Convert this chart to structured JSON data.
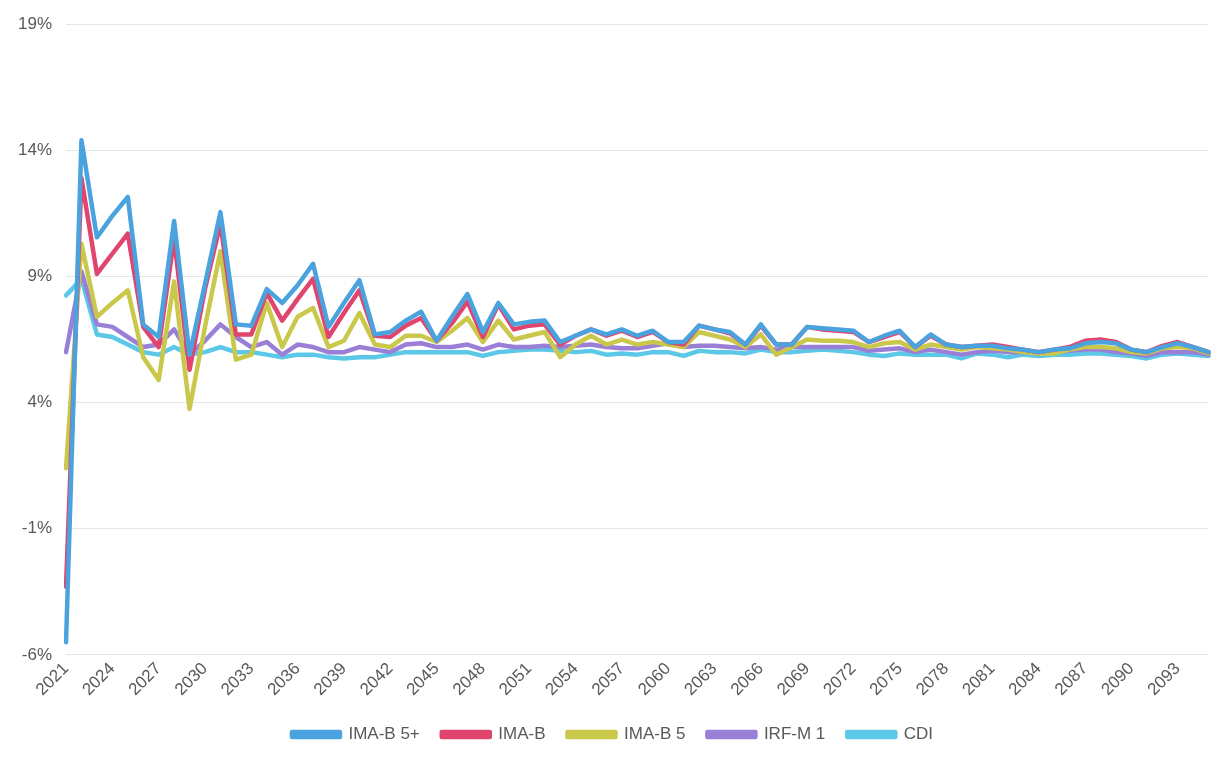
{
  "chart_data": {
    "type": "line",
    "categories": [
      "2021",
      null,
      null,
      "2024",
      null,
      null,
      "2027",
      null,
      null,
      "2030",
      null,
      null,
      "2033",
      null,
      null,
      "2036",
      null,
      null,
      "2039",
      null,
      null,
      "2042",
      null,
      null,
      "2045",
      null,
      null,
      "2048",
      null,
      null,
      "2051",
      null,
      null,
      "2054",
      null,
      null,
      "2057",
      null,
      null,
      "2060",
      null,
      null,
      "2063",
      null,
      null,
      "2066",
      null,
      null,
      "2069",
      null,
      null,
      "2072",
      null,
      null,
      "2075",
      null,
      null,
      "2078",
      null,
      null,
      "2081",
      null,
      null,
      "2084",
      null,
      null,
      "2087",
      null,
      null,
      "2090",
      null,
      null,
      "2093",
      null,
      null
    ],
    "series": [
      {
        "name": "IMA-B 5+",
        "color": "#4aa3df",
        "values": [
          -5.5,
          14.4,
          10.55,
          11.4,
          12.15,
          7.1,
          6.6,
          11.2,
          5.9,
          8.7,
          11.55,
          7.1,
          7.05,
          8.5,
          7.95,
          8.65,
          9.5,
          7.0,
          7.95,
          8.85,
          6.7,
          6.8,
          7.25,
          7.6,
          6.45,
          7.4,
          8.3,
          6.8,
          7.95,
          7.1,
          7.2,
          7.25,
          6.4,
          6.65,
          6.9,
          6.7,
          6.9,
          6.65,
          6.85,
          6.4,
          6.4,
          7.05,
          6.9,
          6.8,
          6.3,
          7.1,
          6.3,
          6.3,
          7.0,
          6.95,
          6.9,
          6.85,
          6.4,
          6.65,
          6.85,
          6.2,
          6.7,
          6.3,
          6.2,
          6.25,
          6.25,
          6.15,
          6.1,
          6.0,
          6.1,
          6.15,
          6.35,
          6.4,
          6.35,
          6.1,
          6.0,
          6.2,
          6.35,
          6.2,
          6.0
        ]
      },
      {
        "name": "IMA-B",
        "color": "#e0456e",
        "values": [
          -3.3,
          12.9,
          9.1,
          9.9,
          10.7,
          7.0,
          6.2,
          10.5,
          5.3,
          8.5,
          11.1,
          6.7,
          6.7,
          8.35,
          7.25,
          8.1,
          8.9,
          6.6,
          7.55,
          8.45,
          6.65,
          6.6,
          7.05,
          7.35,
          6.45,
          7.15,
          8.0,
          6.6,
          7.9,
          6.9,
          7.05,
          7.1,
          6.3,
          6.65,
          6.9,
          6.65,
          6.85,
          6.6,
          6.8,
          6.4,
          6.3,
          7.05,
          6.9,
          6.75,
          6.3,
          7.05,
          6.3,
          6.3,
          7.0,
          6.9,
          6.85,
          6.8,
          6.4,
          6.6,
          6.8,
          6.2,
          6.65,
          6.3,
          6.2,
          6.25,
          6.3,
          6.2,
          6.1,
          6.0,
          6.1,
          6.2,
          6.45,
          6.5,
          6.4,
          6.1,
          6.0,
          6.25,
          6.4,
          6.2,
          6.0
        ]
      },
      {
        "name": "IMA-B 5",
        "color": "#c9c84a",
        "values": [
          1.4,
          10.3,
          7.4,
          7.95,
          8.45,
          5.8,
          4.9,
          8.8,
          3.75,
          7.0,
          10.0,
          5.7,
          5.9,
          7.95,
          6.2,
          7.4,
          7.75,
          6.2,
          6.45,
          7.55,
          6.3,
          6.2,
          6.65,
          6.65,
          6.4,
          6.85,
          7.35,
          6.4,
          7.25,
          6.5,
          6.65,
          6.8,
          5.8,
          6.3,
          6.65,
          6.3,
          6.5,
          6.3,
          6.4,
          6.3,
          6.2,
          6.8,
          6.65,
          6.5,
          6.2,
          6.7,
          5.9,
          6.2,
          6.5,
          6.45,
          6.45,
          6.4,
          6.2,
          6.35,
          6.4,
          6.1,
          6.3,
          6.2,
          6.1,
          6.2,
          6.15,
          6.1,
          6.0,
          5.95,
          5.95,
          6.1,
          6.2,
          6.2,
          6.15,
          6.0,
          5.95,
          6.15,
          6.2,
          6.15,
          5.95
        ]
      },
      {
        "name": "IRF-M 1",
        "color": "#9a7fd6",
        "values": [
          6.0,
          9.2,
          7.1,
          7.0,
          6.6,
          6.2,
          6.3,
          6.9,
          5.9,
          6.45,
          7.1,
          6.6,
          6.2,
          6.4,
          5.9,
          6.3,
          6.2,
          6.0,
          6.0,
          6.2,
          6.1,
          6.0,
          6.3,
          6.35,
          6.2,
          6.2,
          6.3,
          6.1,
          6.3,
          6.2,
          6.2,
          6.25,
          6.2,
          6.25,
          6.3,
          6.2,
          6.15,
          6.15,
          6.25,
          6.35,
          6.2,
          6.25,
          6.25,
          6.2,
          6.15,
          6.2,
          6.1,
          6.2,
          6.2,
          6.2,
          6.2,
          6.2,
          6.05,
          6.1,
          6.15,
          6.0,
          6.1,
          6.0,
          5.9,
          6.0,
          6.05,
          6.0,
          6.0,
          5.95,
          6.0,
          6.05,
          6.1,
          6.1,
          6.0,
          5.95,
          5.85,
          6.0,
          6.0,
          6.0,
          5.9
        ]
      },
      {
        "name": "CDI",
        "color": "#5bc8e8",
        "values": [
          8.25,
          8.9,
          6.7,
          6.6,
          6.3,
          6.0,
          5.9,
          6.2,
          5.9,
          6.0,
          6.2,
          6.0,
          6.0,
          5.9,
          5.8,
          5.9,
          5.9,
          5.8,
          5.75,
          5.8,
          5.8,
          5.9,
          6.0,
          6.0,
          6.0,
          6.0,
          6.0,
          5.85,
          6.0,
          6.05,
          6.1,
          6.1,
          6.05,
          6.0,
          6.05,
          5.9,
          5.95,
          5.9,
          6.0,
          6.0,
          5.85,
          6.05,
          6.0,
          6.0,
          5.95,
          6.1,
          6.0,
          6.0,
          6.05,
          6.1,
          6.05,
          6.0,
          5.9,
          5.85,
          5.95,
          5.9,
          5.9,
          5.9,
          5.75,
          5.95,
          5.9,
          5.8,
          5.9,
          5.85,
          5.9,
          5.9,
          5.95,
          5.95,
          5.9,
          5.85,
          5.75,
          5.9,
          5.95,
          5.9,
          5.85
        ]
      }
    ],
    "ylim": [
      -6,
      19
    ],
    "yticks": [
      {
        "value": -6,
        "label": "-6%"
      },
      {
        "value": -1,
        "label": "-1%"
      },
      {
        "value": 4,
        "label": "4%"
      },
      {
        "value": 9,
        "label": "9%"
      },
      {
        "value": 14,
        "label": "14%"
      },
      {
        "value": 19,
        "label": "19%"
      }
    ],
    "grid": "y",
    "legend": "bottom",
    "marker": "none",
    "line_style": "solid"
  }
}
